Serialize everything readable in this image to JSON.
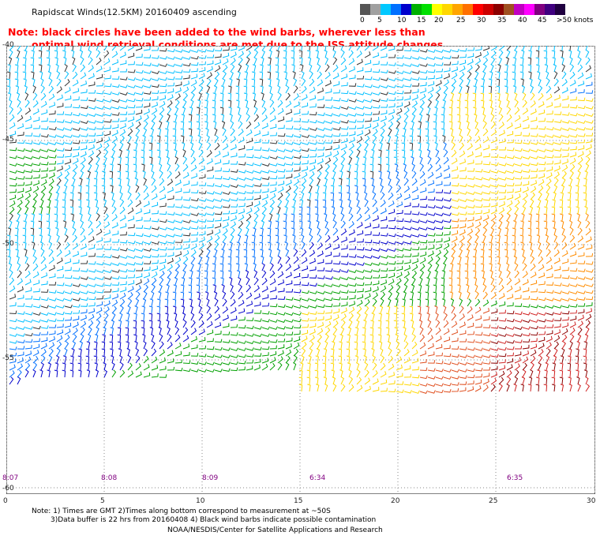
{
  "title": "Rapidscat Winds(12.5KM) 20160409 ascending",
  "note": {
    "line1": "Note: black circles have been added to the wind barbs, wherever less than",
    "line2": "optimal wind retrieval conditions are met due to the ISS attitude changes."
  },
  "color_scale": {
    "colors": [
      "#555555",
      "#a0a0a0",
      "#00c8ff",
      "#0070ff",
      "#0000cc",
      "#00b000",
      "#00e000",
      "#ffff00",
      "#ffd700",
      "#ffa500",
      "#ff7000",
      "#ff0000",
      "#cc0000",
      "#8b0000",
      "#a05020",
      "#c000c0",
      "#ff00ff",
      "#800080",
      "#400080",
      "#200040"
    ],
    "labels": [
      "0",
      "5",
      "10",
      "15",
      "20",
      "25",
      "30",
      "35",
      "40",
      "45",
      ">50 knots"
    ]
  },
  "map": {
    "lat_labels": [
      "-40",
      "-45",
      "-50",
      "-55",
      "-60"
    ],
    "lon_labels": [
      "0",
      "5",
      "10",
      "15",
      "20",
      "25",
      "30"
    ],
    "time_labels": [
      "8:07",
      "8:08",
      "8:09",
      "6:34",
      "6:35"
    ]
  },
  "footer": {
    "line1": "Note: 1) Times are GMT 2)Times along bottom correspond to measurement at ~50S",
    "line2": "3)Data buffer is 22 hrs from 20160408 4) Black wind barbs indicate possible contamination",
    "line3": "NOAA/NESDIS/Center for Satellite Applications and Research"
  }
}
